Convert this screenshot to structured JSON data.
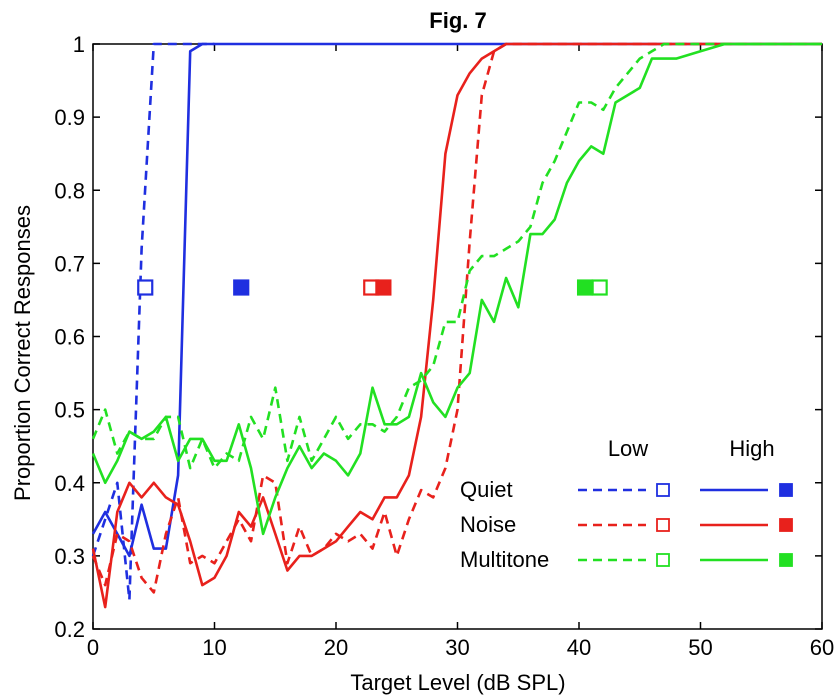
{
  "chart_data": {
    "type": "line",
    "title": "Fig. 7",
    "xlabel": "Target Level (dB SPL)",
    "ylabel": "Proportion Correct Responses",
    "xlim": [
      0,
      60
    ],
    "ylim": [
      0.2,
      1.0
    ],
    "xticks": [
      0,
      10,
      20,
      30,
      40,
      50,
      60
    ],
    "yticks": [
      0.2,
      0.3,
      0.4,
      0.5,
      0.6,
      0.7,
      0.8,
      0.9,
      1.0
    ],
    "xtick_labels": [
      "0",
      "10",
      "20",
      "30",
      "40",
      "50",
      "60"
    ],
    "ytick_labels": [
      "0.2",
      "0.3",
      "0.4",
      "0.5",
      "0.6",
      "0.7",
      "0.8",
      "0.9",
      "1"
    ],
    "grid": false,
    "legend": {
      "placement": "bottom-right",
      "col_headers": [
        "Low",
        "High"
      ],
      "rows": [
        "Quiet",
        "Noise",
        "Multitone"
      ]
    },
    "colors": {
      "quiet": "#1f2fe0",
      "noise": "#e8211c",
      "multitone": "#22e022"
    },
    "series": [
      {
        "condition": "Quiet",
        "level": "Low",
        "style": "dashed",
        "color": "#1f2fe0",
        "x": [
          0,
          1,
          2,
          3,
          4,
          5,
          6,
          8,
          10
        ],
        "y": [
          0.3,
          0.35,
          0.4,
          0.24,
          0.72,
          1.0,
          1.0,
          1.0,
          1.0
        ]
      },
      {
        "condition": "Quiet",
        "level": "High",
        "style": "solid",
        "color": "#1f2fe0",
        "x": [
          0,
          1,
          2,
          3,
          4,
          5,
          6,
          7,
          8,
          9,
          10,
          15,
          20,
          30,
          40,
          50,
          60
        ],
        "y": [
          0.33,
          0.36,
          0.33,
          0.3,
          0.37,
          0.31,
          0.31,
          0.41,
          0.99,
          1.0,
          1.0,
          1.0,
          1.0,
          1.0,
          1.0,
          1.0,
          1.0
        ]
      },
      {
        "condition": "Noise",
        "level": "Low",
        "style": "dashed",
        "color": "#e8211c",
        "x": [
          0,
          1,
          2,
          3,
          4,
          5,
          6,
          7,
          8,
          9,
          10,
          11,
          12,
          13,
          14,
          15,
          16,
          17,
          18,
          19,
          20,
          21,
          22,
          23,
          24,
          25,
          26,
          27,
          28,
          29,
          30,
          31,
          32,
          33,
          34,
          35,
          40,
          50,
          60
        ],
        "y": [
          0.3,
          0.26,
          0.33,
          0.32,
          0.27,
          0.25,
          0.33,
          0.38,
          0.29,
          0.3,
          0.29,
          0.32,
          0.35,
          0.32,
          0.41,
          0.4,
          0.29,
          0.34,
          0.3,
          0.31,
          0.33,
          0.32,
          0.33,
          0.31,
          0.36,
          0.3,
          0.35,
          0.39,
          0.38,
          0.42,
          0.5,
          0.73,
          0.93,
          0.99,
          1.0,
          1.0,
          1.0,
          1.0,
          1.0
        ]
      },
      {
        "condition": "Noise",
        "level": "High",
        "style": "solid",
        "color": "#e8211c",
        "x": [
          0,
          1,
          2,
          3,
          4,
          5,
          6,
          7,
          8,
          9,
          10,
          11,
          12,
          13,
          14,
          15,
          16,
          17,
          18,
          19,
          20,
          21,
          22,
          23,
          24,
          25,
          26,
          27,
          28,
          29,
          30,
          31,
          32,
          33,
          34,
          35,
          40,
          50,
          60
        ],
        "y": [
          0.31,
          0.23,
          0.36,
          0.4,
          0.38,
          0.4,
          0.38,
          0.37,
          0.32,
          0.26,
          0.27,
          0.3,
          0.36,
          0.34,
          0.38,
          0.33,
          0.28,
          0.3,
          0.3,
          0.31,
          0.32,
          0.34,
          0.36,
          0.35,
          0.38,
          0.38,
          0.41,
          0.49,
          0.65,
          0.85,
          0.93,
          0.96,
          0.98,
          0.99,
          1.0,
          1.0,
          1.0,
          1.0,
          1.0
        ]
      },
      {
        "condition": "Multitone",
        "level": "Low",
        "style": "dashed",
        "color": "#22e022",
        "x": [
          0,
          1,
          2,
          3,
          4,
          5,
          6,
          7,
          8,
          9,
          10,
          11,
          12,
          13,
          14,
          15,
          16,
          17,
          18,
          19,
          20,
          21,
          22,
          23,
          24,
          25,
          26,
          27,
          28,
          29,
          30,
          31,
          32,
          33,
          34,
          35,
          36,
          37,
          38,
          39,
          40,
          41,
          42,
          43,
          44,
          45,
          46,
          47,
          48,
          50,
          60
        ],
        "y": [
          0.46,
          0.5,
          0.44,
          0.47,
          0.46,
          0.46,
          0.49,
          0.49,
          0.42,
          0.46,
          0.42,
          0.44,
          0.43,
          0.49,
          0.46,
          0.53,
          0.43,
          0.49,
          0.43,
          0.46,
          0.49,
          0.46,
          0.48,
          0.48,
          0.47,
          0.49,
          0.53,
          0.54,
          0.56,
          0.62,
          0.62,
          0.69,
          0.71,
          0.71,
          0.72,
          0.73,
          0.75,
          0.81,
          0.84,
          0.88,
          0.92,
          0.92,
          0.91,
          0.94,
          0.96,
          0.98,
          0.99,
          1.0,
          1.0,
          1.0,
          1.0
        ]
      },
      {
        "condition": "Multitone",
        "level": "High",
        "style": "solid",
        "color": "#22e022",
        "x": [
          0,
          1,
          2,
          3,
          4,
          5,
          6,
          7,
          8,
          9,
          10,
          11,
          12,
          13,
          14,
          15,
          16,
          17,
          18,
          19,
          20,
          21,
          22,
          23,
          24,
          25,
          26,
          27,
          28,
          29,
          30,
          31,
          32,
          33,
          34,
          35,
          36,
          37,
          38,
          39,
          40,
          41,
          42,
          43,
          44,
          45,
          46,
          47,
          48,
          50,
          52,
          54,
          56,
          60
        ],
        "y": [
          0.44,
          0.4,
          0.43,
          0.47,
          0.46,
          0.47,
          0.49,
          0.43,
          0.46,
          0.46,
          0.43,
          0.43,
          0.48,
          0.42,
          0.33,
          0.38,
          0.42,
          0.45,
          0.42,
          0.44,
          0.43,
          0.41,
          0.44,
          0.53,
          0.48,
          0.48,
          0.49,
          0.55,
          0.51,
          0.49,
          0.53,
          0.55,
          0.65,
          0.62,
          0.68,
          0.64,
          0.74,
          0.74,
          0.76,
          0.81,
          0.84,
          0.86,
          0.85,
          0.92,
          0.93,
          0.94,
          0.98,
          0.98,
          0.98,
          0.99,
          1.0,
          1.0,
          1.0,
          1.0
        ]
      }
    ],
    "threshold_markers": [
      {
        "condition": "Quiet",
        "level": "Low",
        "x": 4.3,
        "y": 0.667,
        "filled": false,
        "color": "#1f2fe0"
      },
      {
        "condition": "Quiet",
        "level": "High",
        "x": 12.2,
        "y": 0.667,
        "filled": true,
        "color": "#1f2fe0"
      },
      {
        "condition": "Noise",
        "level": "Low",
        "x": 22.9,
        "y": 0.667,
        "filled": false,
        "color": "#e8211c"
      },
      {
        "condition": "Noise",
        "level": "High",
        "x": 23.9,
        "y": 0.667,
        "filled": true,
        "color": "#e8211c"
      },
      {
        "condition": "Multitone",
        "level": "High",
        "x": 40.5,
        "y": 0.667,
        "filled": true,
        "color": "#22e022"
      },
      {
        "condition": "Multitone",
        "level": "Low",
        "x": 41.7,
        "y": 0.667,
        "filled": false,
        "color": "#22e022"
      }
    ]
  }
}
